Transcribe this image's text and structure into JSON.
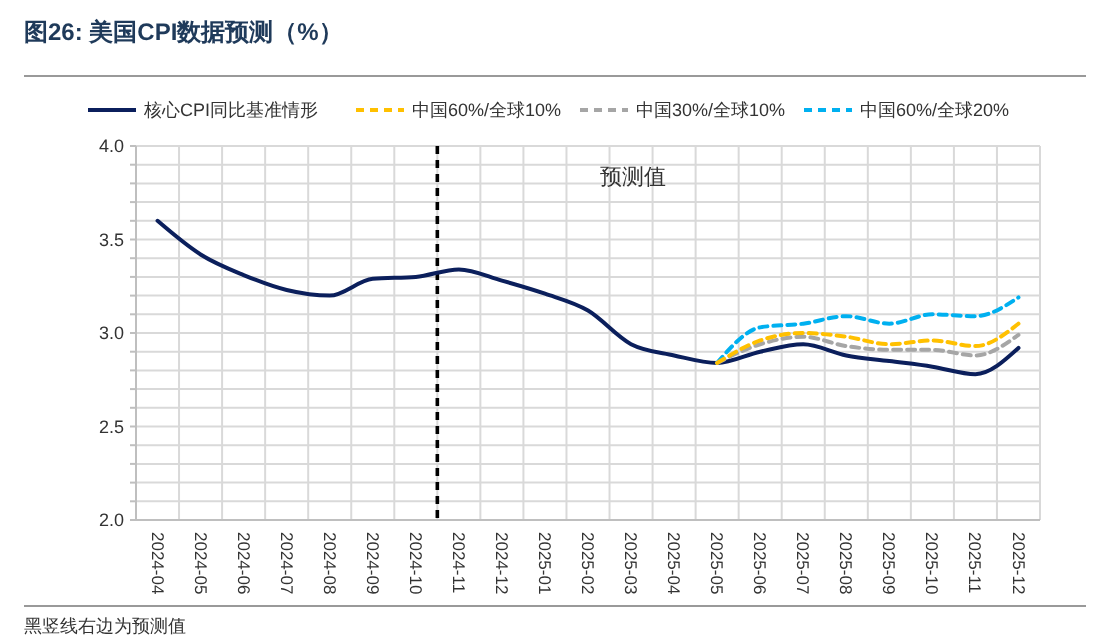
{
  "chart_data": {
    "type": "line",
    "title": "图26:  美国CPI数据预测（%）",
    "categories": [
      "2024-04",
      "2024-05",
      "2024-06",
      "2024-07",
      "2024-08",
      "2024-09",
      "2024-10",
      "2024-11",
      "2024-12",
      "2025-01",
      "2025-02",
      "2025-03",
      "2025-04",
      "2025-05",
      "2025-06",
      "2025-07",
      "2025-08",
      "2025-09",
      "2025-10",
      "2025-11",
      "2025-12"
    ],
    "series": [
      {
        "name": "核心CPI同比基准情形",
        "color": "#0b1f5c",
        "line_style": "solid",
        "values": [
          3.6,
          3.42,
          3.31,
          3.23,
          3.2,
          3.29,
          3.3,
          3.34,
          3.28,
          3.21,
          3.12,
          2.94,
          2.88,
          2.84,
          2.9,
          2.94,
          2.88,
          2.85,
          2.82,
          2.78,
          2.92
        ]
      },
      {
        "name": "中国60%/全球10%",
        "color": "#ffc000",
        "line_style": "dashed",
        "values": [
          null,
          null,
          null,
          null,
          null,
          null,
          null,
          null,
          null,
          null,
          null,
          null,
          null,
          2.84,
          2.96,
          3.0,
          2.98,
          2.94,
          2.96,
          2.93,
          3.05
        ]
      },
      {
        "name": "中国30%/全球10%",
        "color": "#a6a6a6",
        "line_style": "dashed",
        "values": [
          null,
          null,
          null,
          null,
          null,
          null,
          null,
          null,
          null,
          null,
          null,
          null,
          null,
          2.84,
          2.94,
          2.98,
          2.93,
          2.91,
          2.91,
          2.88,
          2.99
        ]
      },
      {
        "name": "中国60%/全球20%",
        "color": "#00b0f0",
        "line_style": "dashed",
        "values": [
          null,
          null,
          null,
          null,
          null,
          null,
          null,
          null,
          null,
          null,
          null,
          null,
          null,
          2.84,
          3.03,
          3.05,
          3.09,
          3.05,
          3.1,
          3.09,
          3.19
        ]
      }
    ],
    "ylim": [
      2,
      4
    ],
    "yticks": [
      {
        "value": 2,
        "label": "2.0"
      },
      {
        "value": 2.1,
        "label": null
      },
      {
        "value": 2.2,
        "label": null
      },
      {
        "value": 2.3,
        "label": null
      },
      {
        "value": 2.4,
        "label": null
      },
      {
        "value": 2.5,
        "label": "2.5"
      },
      {
        "value": 2.6,
        "label": null
      },
      {
        "value": 2.7,
        "label": null
      },
      {
        "value": 2.8,
        "label": null
      },
      {
        "value": 2.9,
        "label": null
      },
      {
        "value": 3,
        "label": "3.0"
      },
      {
        "value": 3.1,
        "label": null
      },
      {
        "value": 3.2,
        "label": null
      },
      {
        "value": 3.3,
        "label": null
      },
      {
        "value": 3.4,
        "label": null
      },
      {
        "value": 3.5,
        "label": "3.5"
      },
      {
        "value": 3.6,
        "label": null
      },
      {
        "value": 3.7,
        "label": null
      },
      {
        "value": 3.8,
        "label": null
      },
      {
        "value": 3.9,
        "label": null
      },
      {
        "value": 4,
        "label": "4.0"
      }
    ],
    "grid": true,
    "legend": "top",
    "ref_lines": [
      {
        "axis": "x",
        "value": "2024-11",
        "color": "#000000",
        "line_style": "dashed"
      }
    ],
    "annotations": [
      "预测值",
      "黑竖线右边为预测值"
    ]
  }
}
